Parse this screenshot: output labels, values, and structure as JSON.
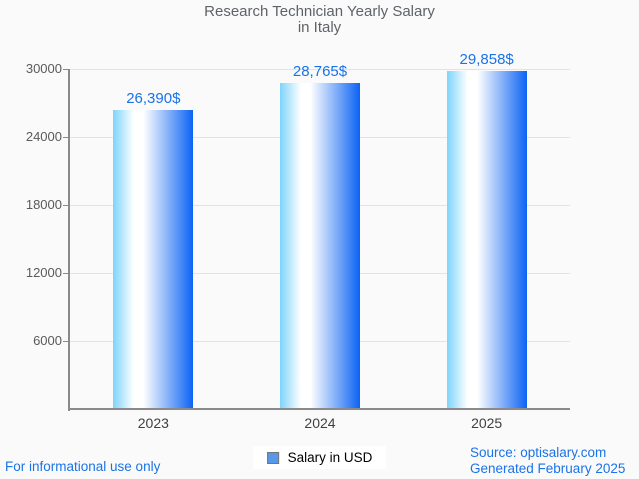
{
  "title": {
    "line1": "Research Technician Yearly Salary",
    "line2": "in Italy"
  },
  "legend": {
    "label": "Salary in USD"
  },
  "footer": {
    "disclaimer": "For informational use only",
    "source": "Source: optisalary.com",
    "generated": "Generated February 2025"
  },
  "colors": {
    "accent_blue": "#1a73e8",
    "title_text": "#5f6368",
    "axis": "#8a8a8a",
    "gridline": "#e3e3e3",
    "bar_gradient_light": "#7ed4fc",
    "bar_gradient_mid": "#ffffff",
    "bar_gradient_deep": "#0c63f3",
    "legend_swatch": "#5599e8",
    "background": "#fafafa"
  },
  "chart_data": {
    "type": "bar",
    "title": "Research Technician Yearly Salary in Italy",
    "categories": [
      "2023",
      "2024",
      "2025"
    ],
    "values": [
      26390,
      28765,
      29858
    ],
    "value_labels": [
      "26,390$",
      "28,765$",
      "29,858$"
    ],
    "series": [
      {
        "name": "Salary in USD",
        "values": [
          26390,
          28765,
          29858
        ]
      }
    ],
    "xlabel": "",
    "ylabel": "",
    "ylim": [
      0,
      30000
    ],
    "yticks": [
      6000,
      12000,
      18000,
      24000,
      30000
    ],
    "ytick_labels": [
      "6000",
      "12000",
      "18000",
      "24000",
      "30000"
    ],
    "grid": "horizontal",
    "legend_position": "bottom"
  }
}
